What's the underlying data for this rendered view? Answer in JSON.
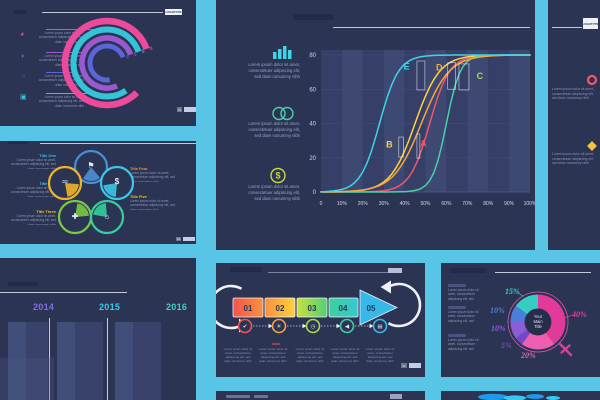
{
  "colors": {
    "background_grid": "#58c5e6",
    "panel_background": "#2c3454",
    "muted_text": "#8a93b8",
    "rule_white": "#dfe4f2"
  },
  "shared": {
    "logotype": "LOGOTYPE",
    "page_no": "01",
    "lorem_block": "Lorem ipsum dolor sit amet, consectetuer adipiscing elit, sed diam nonummy nibh",
    "lorem_lines": [
      "Lorem ipsum dolor sit amet,",
      "consectetuer adipiscing elit,",
      "sed diam nonummy nibh"
    ]
  },
  "panels": {
    "radial": {
      "items": [
        {
          "icon": "pie-chart-icon",
          "glyph": "◕",
          "color": "#ec4a9b"
        },
        {
          "icon": "pie-chart-icon",
          "glyph": "◑",
          "color": "#9b59d0"
        },
        {
          "icon": "lightbulb-icon",
          "glyph": "☼",
          "color": "#5b64d8"
        },
        {
          "icon": "briefcase-icon",
          "glyph": "▣",
          "color": "#35c3d8"
        }
      ]
    },
    "cycle": {
      "titles": [
        {
          "label": "Title One",
          "color": "#3bc8e8"
        },
        {
          "label": "Title Two",
          "color": "#3bc8e8"
        },
        {
          "label": "Title Three",
          "color": "#f0c030"
        },
        {
          "label": "Title Four",
          "color": "#f09a3e"
        },
        {
          "label": "Title Five",
          "color": "#f0c030"
        }
      ],
      "nodes": [
        {
          "icon": "cycle-node-icon",
          "glyph": "⚑",
          "color": "#4a8fd4"
        },
        {
          "icon": "cycle-node-icon",
          "glyph": "∞",
          "color": "#f0b429"
        },
        {
          "icon": "cycle-node-icon",
          "glyph": "$",
          "color": "#3bc8e8"
        },
        {
          "icon": "cycle-node-icon",
          "glyph": "✚",
          "color": "#7ac943"
        },
        {
          "icon": "cycle-node-icon",
          "glyph": "☼",
          "color": "#35cf9e"
        }
      ]
    },
    "timeline": {
      "years": [
        {
          "label": "2014",
          "color": "#7d6ee0"
        },
        {
          "label": "2015",
          "color": "#3bc9e8"
        },
        {
          "label": "2016",
          "color": "#3fd2b8"
        }
      ]
    },
    "scurve_list": {
      "items": [
        {
          "icon": "bar-chart-icon",
          "color": "#3fd4e8"
        },
        {
          "icon": "venn-circles-icon",
          "color": "#49d0a8"
        },
        {
          "icon": "dollar-circle-icon",
          "glyph": "$",
          "color": "#c6d93f"
        }
      ]
    },
    "tr": {
      "items": [
        {
          "icon": "donut-ring-icon",
          "color": "#f2566b"
        },
        {
          "icon": "diamond-icon",
          "color": "#f5c33d"
        }
      ]
    },
    "process": {
      "steps": [
        {
          "num": "01",
          "color": "#f4544e",
          "icon": "thumbs-up-icon",
          "glyph": "✔"
        },
        {
          "num": "02",
          "color": "#f7a13f",
          "icon": "lightbulb-icon",
          "glyph": "☀"
        },
        {
          "num": "03",
          "color": "#a8d94a",
          "icon": "clock-icon",
          "glyph": "◷"
        },
        {
          "num": "04",
          "color": "#3ecf9e",
          "icon": "speaker-icon",
          "glyph": "◀"
        },
        {
          "num": "05",
          "color": "#35b9e8",
          "icon": "briefcase-icon",
          "glyph": "▤"
        }
      ]
    },
    "donut": {
      "center_title_lines": [
        "Your",
        "Main",
        "Title"
      ]
    }
  },
  "chart_data": [
    {
      "id": "performance_curves",
      "type": "line",
      "title": "",
      "xlabel": "",
      "ylabel": "",
      "xlim": [
        0,
        100
      ],
      "ylim": [
        0,
        80
      ],
      "x_ticks": [
        "0",
        "10%",
        "20%",
        "30%",
        "40%",
        "50%",
        "60%",
        "70%",
        "80%",
        "90%",
        "100%"
      ],
      "y_ticks": [
        0,
        20,
        40,
        60,
        80
      ],
      "grid": true,
      "background_columns": true,
      "series": [
        {
          "name": "A",
          "shape": "sigmoid",
          "midpoint": 52,
          "steepness": 0.21,
          "max": 80,
          "color": "#f2566b",
          "label_pos": [
            49,
            26.5
          ]
        },
        {
          "name": "B",
          "shape": "sigmoid",
          "midpoint": 45,
          "steepness": 0.17,
          "max": 80,
          "color": "#ffd23f",
          "label_pos": [
            32.7,
            26
          ]
        },
        {
          "name": "C",
          "shape": "sigmoid",
          "midpoint": 60,
          "steepness": 0.3,
          "max": 80,
          "color": "#49d0a8",
          "label_color": "#a8d94a",
          "label_pos": [
            76,
            66
          ]
        },
        {
          "name": "D",
          "shape": "sigmoid",
          "midpoint": 48,
          "steepness": 0.15,
          "max": 80,
          "color": "#f5a93d",
          "label_pos": [
            56.6,
            71
          ]
        },
        {
          "name": "E",
          "shape": "sigmoid",
          "midpoint": 28,
          "steepness": 0.22,
          "max": 80,
          "color": "#3fd4e8",
          "label_pos": [
            41,
            71.5
          ]
        }
      ],
      "callout_boxes": [
        {
          "t": [
            45.9,
            49.7
          ],
          "v": [
            59.6,
            76.5
          ]
        },
        {
          "t": [
            60.6,
            64.4
          ],
          "v": [
            60.0,
            75.5
          ]
        },
        {
          "t": [
            66.0,
            70.8
          ],
          "v": [
            59.6,
            74.8
          ]
        },
        {
          "t": [
            37.2,
            39.4
          ],
          "v": [
            20.4,
            32.1
          ]
        },
        {
          "t": [
            45.9,
            47.3
          ],
          "v": [
            19.7,
            33.9
          ]
        }
      ]
    },
    {
      "id": "gender_donut",
      "type": "pie",
      "center_title": "Your Main Title",
      "segments": [
        {
          "label": "40%",
          "value": 40,
          "color": "#e23a9b"
        },
        {
          "label": "20%",
          "value": 20,
          "color": "#ee5fb0"
        },
        {
          "label": "5%",
          "value": 5,
          "color": "#7447c9"
        },
        {
          "label": "10%",
          "value": 10,
          "color": "#8a5fd6"
        },
        {
          "label": "10%",
          "value": 10,
          "color": "#4a7fd9"
        },
        {
          "label": "15%",
          "value": 15,
          "color": "#38cdc4"
        }
      ],
      "note": "donut doubles as female gender symbol"
    },
    {
      "id": "radial_arcs",
      "type": "radial-bar",
      "arcs": [
        {
          "r": 42,
          "frac": 0.82,
          "color": "#ec4a9b",
          "tip_label": "85"
        },
        {
          "r": 33.5,
          "frac": 0.79,
          "color": "#35c3d8",
          "tip_label": "68"
        },
        {
          "r": 25,
          "frac": 0.76,
          "color": "#9b59d0",
          "tip_label": "43"
        },
        {
          "r": 17,
          "frac": 0.72,
          "color": "#5b64d8",
          "tip_label": "54"
        }
      ]
    },
    {
      "id": "cycle_diagram",
      "type": "pie",
      "categories": [
        "Title One",
        "Title Two",
        "Title Three",
        "Title Four",
        "Title Five"
      ],
      "values": [
        1,
        1,
        1,
        1,
        1
      ]
    },
    {
      "id": "timeline",
      "type": "bar",
      "categories": [
        "2014",
        "2015",
        "2016"
      ],
      "values": [
        1,
        1,
        1
      ]
    },
    {
      "id": "process_flow",
      "type": "table",
      "categories": [
        "01",
        "02",
        "03",
        "04",
        "05"
      ]
    }
  ]
}
